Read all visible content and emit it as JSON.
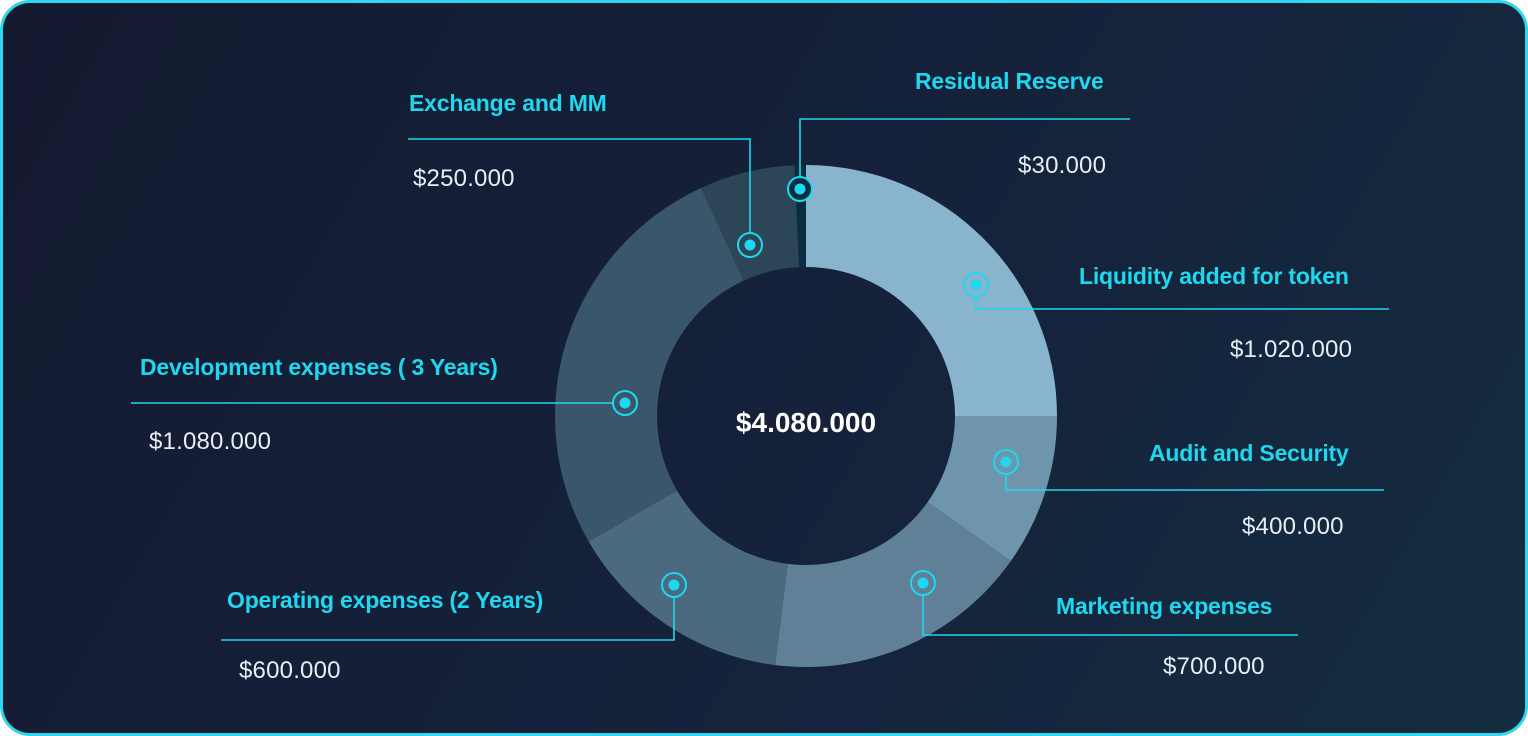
{
  "chart_data": {
    "type": "pie",
    "donut": true,
    "center_label": "$4.080.000",
    "slices": [
      {
        "name": "Liquidity added for token",
        "value": 1020000,
        "value_label": "$1.020.000",
        "color": "#89b4ce"
      },
      {
        "name": "Audit and Security",
        "value": 400000,
        "value_label": "$400.000",
        "color": "#6e95ab"
      },
      {
        "name": "Marketing expenses",
        "value": 700000,
        "value_label": "$700.000",
        "color": "#5f8097"
      },
      {
        "name": "Operating expenses (2 Years)",
        "value": 600000,
        "value_label": "$600.000",
        "color": "#4b6a80"
      },
      {
        "name": "Development expenses ( 3 Years)",
        "value": 1080000,
        "value_label": "$1.080.000",
        "color": "#3a566b"
      },
      {
        "name": "Exchange and MM",
        "value": 250000,
        "value_label": "$250.000",
        "color": "#2c4658"
      },
      {
        "name": "Residual Reserve",
        "value": 30000,
        "value_label": "$30.000",
        "color": "#0b2d44"
      }
    ]
  },
  "colors": {
    "accent": "#1fd7ee",
    "frame_border": "#2fd6ec",
    "background": "#15213a",
    "value_text": "#e8eef6"
  }
}
